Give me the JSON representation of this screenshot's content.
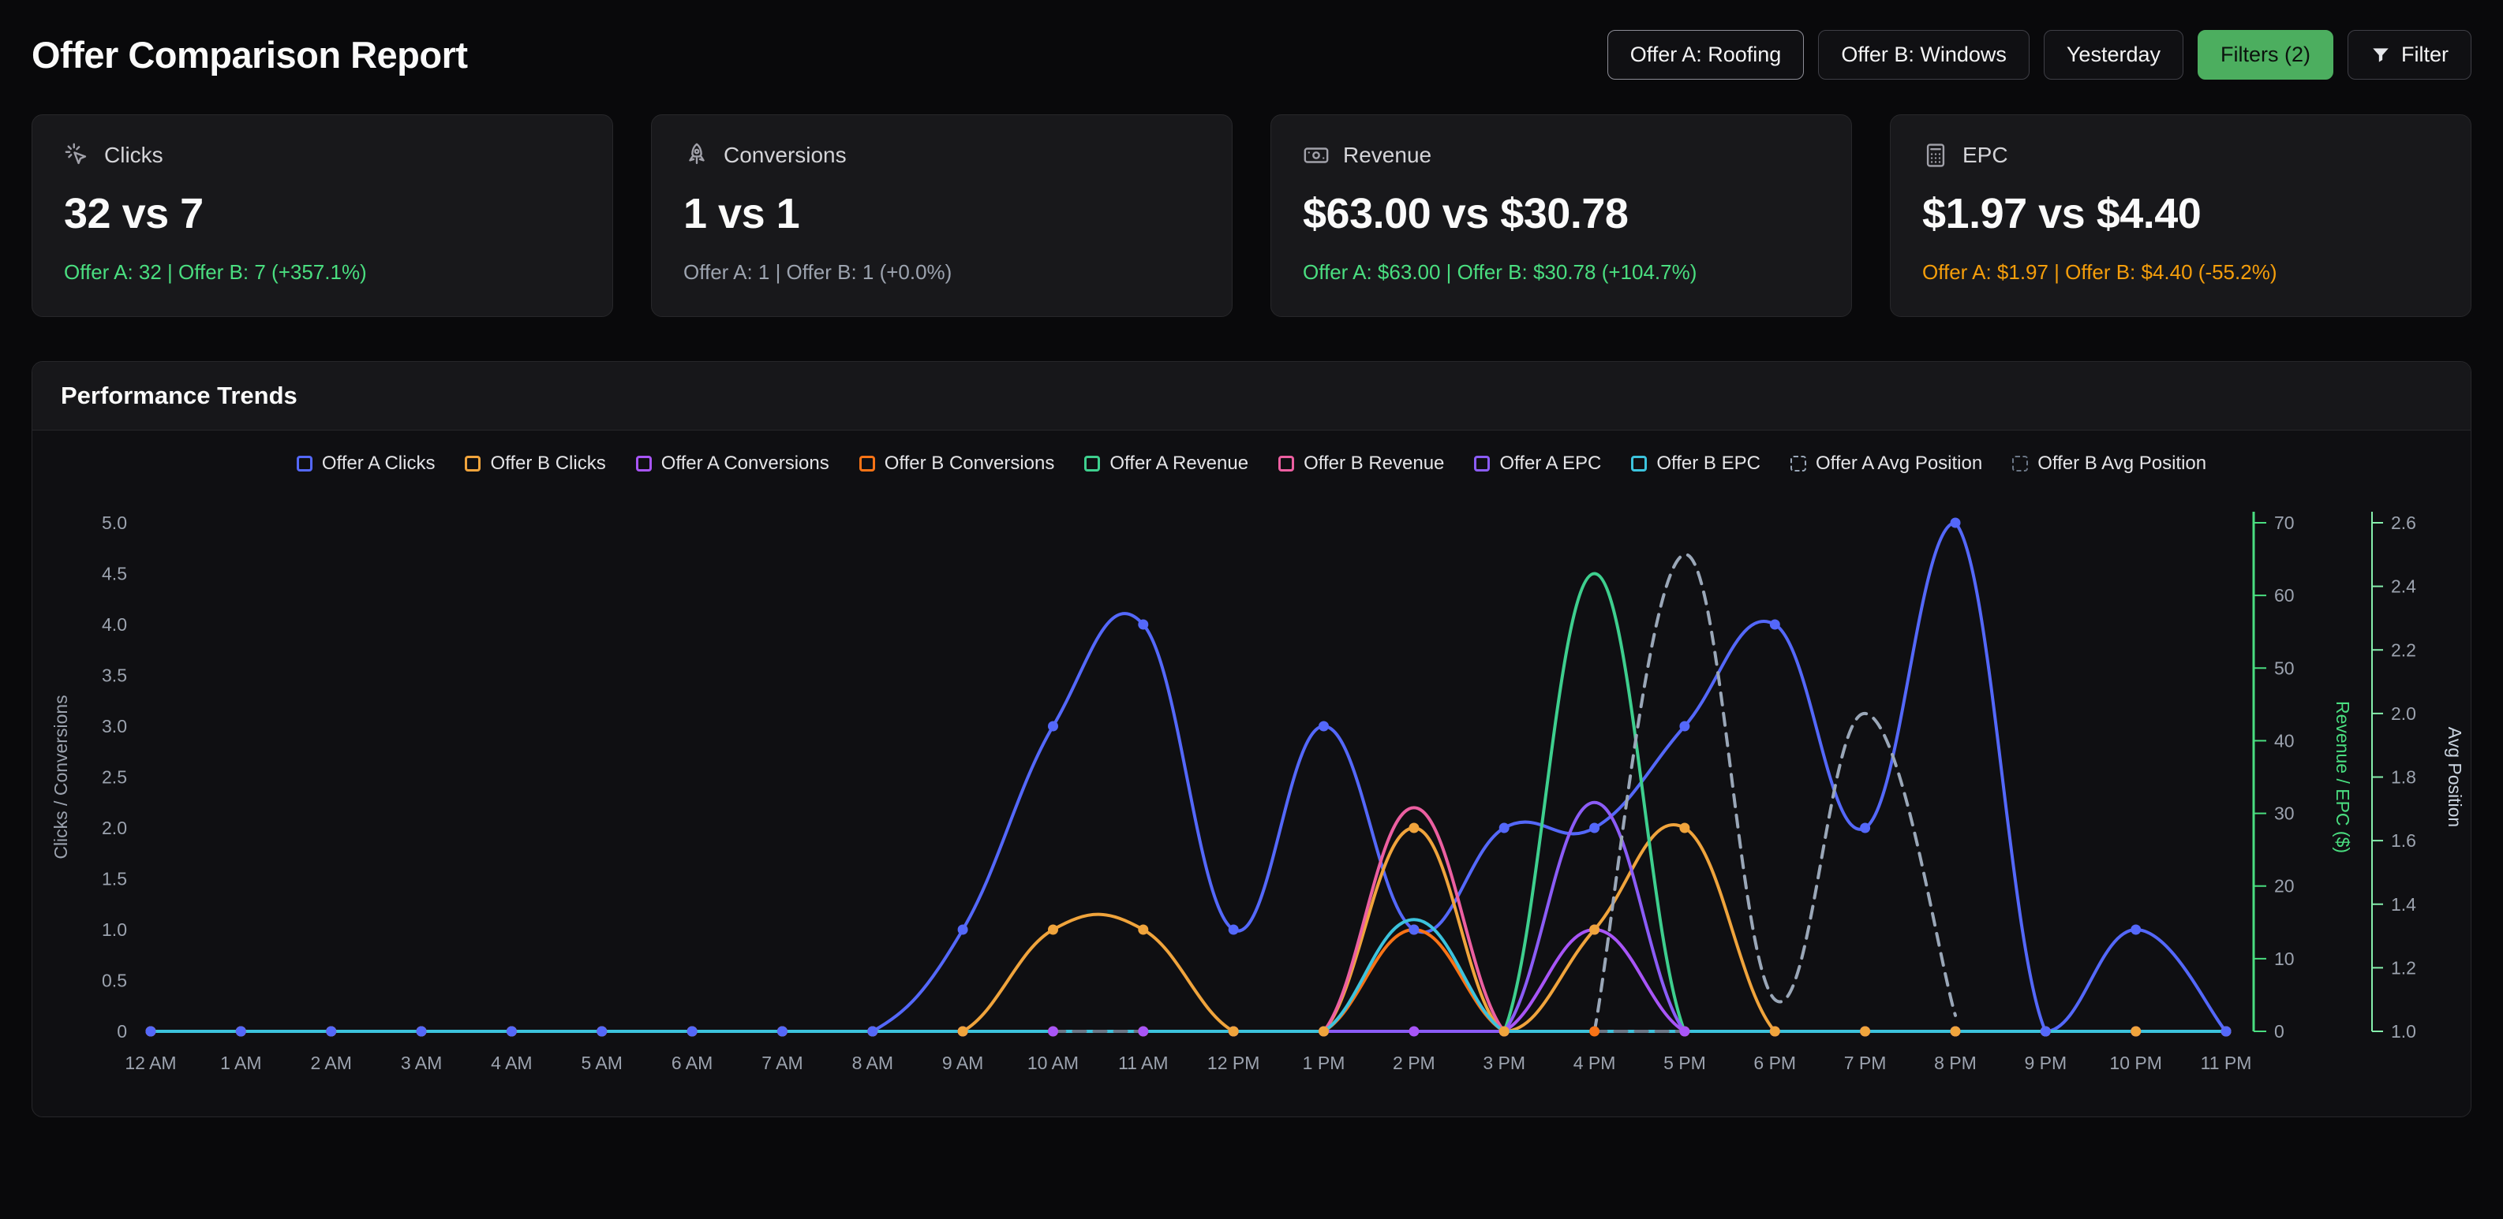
{
  "header": {
    "title": "Offer Comparison Report",
    "buttons": {
      "offer_a": "Offer A: Roofing",
      "offer_b": "Offer B: Windows",
      "date_range": "Yesterday",
      "filters": "Filters (2)",
      "filter": "Filter"
    }
  },
  "cards": [
    {
      "label": "Clicks",
      "icon": "cursor-click-icon",
      "value": "32 vs 7",
      "detail": "Offer A: 32 | Offer B: 7 (+357.1%)",
      "detail_color": "#4ade80"
    },
    {
      "label": "Conversions",
      "icon": "rocket-icon",
      "value": "1 vs 1",
      "detail": "Offer A: 1 | Offer B: 1 (+0.0%)",
      "detail_color": "#9ca3af"
    },
    {
      "label": "Revenue",
      "icon": "banknote-icon",
      "value": "$63.00 vs $30.78",
      "detail": "Offer A: $63.00 | Offer B: $30.78 (+104.7%)",
      "detail_color": "#4ade80"
    },
    {
      "label": "EPC",
      "icon": "calculator-icon",
      "value": "$1.97 vs $4.40",
      "detail": "Offer A: $1.97 | Offer B: $4.40 (-55.2%)",
      "detail_color": "#f59e0b"
    }
  ],
  "chart_section": {
    "title": "Performance Trends"
  },
  "chart_data": {
    "type": "line",
    "legend_position": "top",
    "x": [
      "12 AM",
      "1 AM",
      "2 AM",
      "3 AM",
      "4 AM",
      "5 AM",
      "6 AM",
      "7 AM",
      "8 AM",
      "9 AM",
      "10 AM",
      "11 AM",
      "12 PM",
      "1 PM",
      "2 PM",
      "3 PM",
      "4 PM",
      "5 PM",
      "6 PM",
      "7 PM",
      "8 PM",
      "9 PM",
      "10 PM",
      "11 PM"
    ],
    "axes": {
      "left": {
        "label": "Clicks / Conversions",
        "min": 0,
        "max": 5,
        "ticks": [
          "0",
          "0.5",
          "1.0",
          "1.5",
          "2.0",
          "2.5",
          "3.0",
          "3.5",
          "4.0",
          "4.5",
          "5.0"
        ],
        "color": "#9ca3af"
      },
      "right1": {
        "label": "Revenue / EPC ($)",
        "min": 0,
        "max": 70,
        "ticks": [
          "0",
          "10",
          "20",
          "30",
          "40",
          "50",
          "60",
          "70"
        ],
        "color": "#4ade80"
      },
      "right2": {
        "label": "Avg Position",
        "min": 1.0,
        "max": 2.6,
        "ticks": [
          "1.0",
          "1.2",
          "1.4",
          "1.6",
          "1.8",
          "2.0",
          "2.2",
          "2.4",
          "2.6"
        ],
        "color": "#cbd5e1"
      }
    },
    "series": [
      {
        "name": "Offer A Clicks",
        "color": "#5468fa",
        "axis": "left",
        "points": true,
        "dashed": false,
        "values": [
          0,
          0,
          0,
          0,
          0,
          0,
          0,
          0,
          0,
          1,
          3,
          4,
          1,
          3,
          1,
          2,
          2,
          3,
          4,
          2,
          5,
          0,
          1,
          0
        ]
      },
      {
        "name": "Offer B Clicks",
        "color": "#f0a43c",
        "axis": "left",
        "points": true,
        "dashed": false,
        "values": [
          0,
          0,
          0,
          0,
          0,
          0,
          0,
          0,
          0,
          0,
          1,
          1,
          0,
          0,
          2,
          0,
          1,
          2,
          0,
          0,
          0,
          0,
          0,
          0
        ]
      },
      {
        "name": "Offer A Conversions",
        "color": "#a855f7",
        "axis": "left",
        "points": true,
        "dashed": false,
        "values": [
          0,
          0,
          0,
          0,
          0,
          0,
          0,
          0,
          0,
          0,
          0,
          0,
          0,
          0,
          0,
          0,
          1,
          0,
          0,
          0,
          0,
          0,
          0,
          0
        ]
      },
      {
        "name": "Offer B Conversions",
        "color": "#f97316",
        "axis": "left",
        "points": true,
        "dashed": false,
        "values": [
          0,
          0,
          0,
          0,
          0,
          0,
          0,
          0,
          0,
          0,
          0,
          0,
          0,
          0,
          1,
          0,
          0,
          0,
          0,
          0,
          0,
          0,
          0,
          0
        ]
      },
      {
        "name": "Offer A Revenue",
        "color": "#3ecf8e",
        "axis": "right1",
        "points": false,
        "dashed": false,
        "values": [
          0,
          0,
          0,
          0,
          0,
          0,
          0,
          0,
          0,
          0,
          0,
          0,
          0,
          0,
          0,
          0,
          63,
          0,
          0,
          0,
          0,
          0,
          0,
          0
        ]
      },
      {
        "name": "Offer B Revenue",
        "color": "#ec5fa1",
        "axis": "right1",
        "points": false,
        "dashed": false,
        "values": [
          0,
          0,
          0,
          0,
          0,
          0,
          0,
          0,
          0,
          0,
          0,
          0,
          0,
          0,
          30.78,
          0,
          0,
          0,
          0,
          0,
          0,
          0,
          0,
          0
        ]
      },
      {
        "name": "Offer A EPC",
        "color": "#8b5cf6",
        "axis": "right1",
        "points": false,
        "dashed": false,
        "values": [
          0,
          0,
          0,
          0,
          0,
          0,
          0,
          0,
          0,
          0,
          0,
          0,
          0,
          0,
          0,
          0,
          31.5,
          0,
          0,
          0,
          0,
          0,
          0,
          0
        ]
      },
      {
        "name": "Offer B EPC",
        "color": "#3cc3dd",
        "axis": "right1",
        "points": false,
        "dashed": false,
        "values": [
          0,
          0,
          0,
          0,
          0,
          0,
          0,
          0,
          0,
          0,
          0,
          0,
          0,
          0,
          15.39,
          0,
          0,
          0,
          0,
          0,
          0,
          0,
          0,
          0
        ]
      },
      {
        "name": "Offer A Avg Position",
        "color": "#9aa7b8",
        "axis": "right2",
        "points": false,
        "dashed": true,
        "values": [
          null,
          null,
          null,
          null,
          null,
          null,
          null,
          null,
          null,
          null,
          null,
          null,
          null,
          null,
          null,
          null,
          1.0,
          2.5,
          1.1,
          2.0,
          1.05,
          null,
          null,
          null
        ]
      },
      {
        "name": "Offer B Avg Position",
        "color": "#6b7686",
        "axis": "right2",
        "points": false,
        "dashed": true,
        "values": [
          null,
          null,
          null,
          null,
          null,
          null,
          null,
          null,
          null,
          null,
          1.0,
          1.0,
          null,
          null,
          1.0,
          null,
          1.0,
          1.0,
          null,
          null,
          null,
          null,
          null,
          null
        ]
      }
    ]
  }
}
